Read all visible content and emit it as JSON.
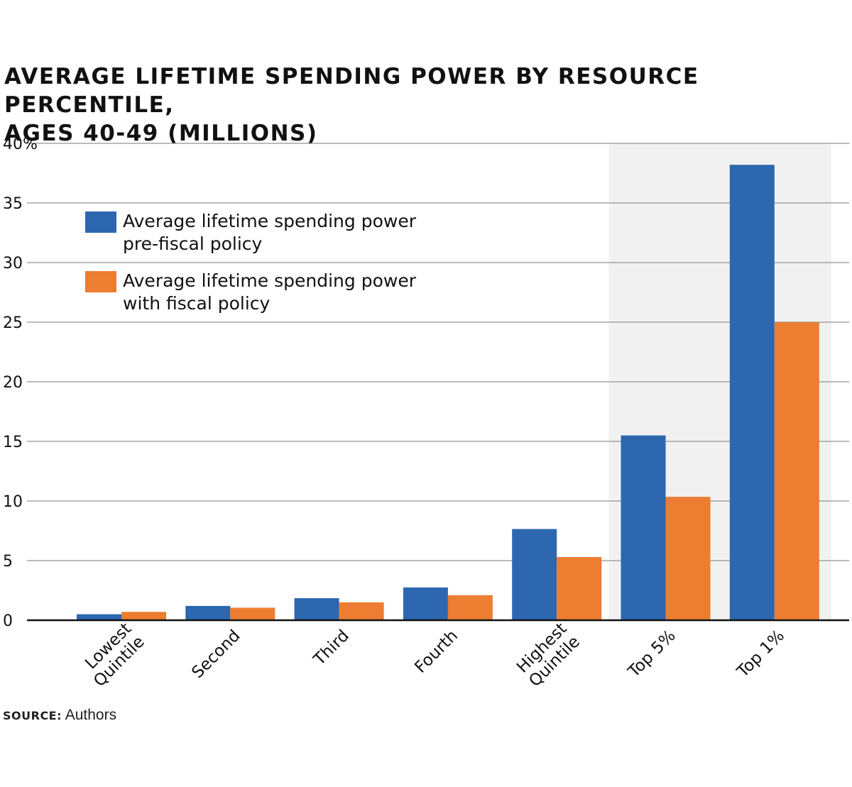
{
  "title_lines": [
    "AVERAGE LIFETIME SPENDING POWER BY RESOURCE PERCENTILE,",
    "AGES 40-49 (MILLIONS)"
  ],
  "source": {
    "label": "SOURCE:",
    "text": "Authors"
  },
  "legend": [
    {
      "series": 0,
      "lines": [
        "Average lifetime spending power",
        "pre-fiscal policy"
      ]
    },
    {
      "series": 1,
      "lines": [
        "Average lifetime spending power",
        "with fiscal policy"
      ]
    }
  ],
  "colors": {
    "series_pre": "#2c67b0",
    "series_with": "#ec7d31",
    "highlight_band": "#f0f1f0",
    "gridline": "#7a7a7a",
    "baseline": "#111111"
  },
  "chart_data": {
    "type": "bar",
    "title": "AVERAGE LIFETIME SPENDING POWER BY RESOURCE PERCENTILE, AGES 40-49 (MILLIONS)",
    "categories": [
      [
        "Lowest",
        "Quintile"
      ],
      [
        "Second"
      ],
      [
        "Third"
      ],
      [
        "Fourth"
      ],
      [
        "Highest",
        "Quintile"
      ],
      [
        "Top 5%"
      ],
      [
        "Top 1%"
      ]
    ],
    "series": [
      {
        "name": "Average lifetime spending power pre-fiscal policy",
        "values": [
          0.5,
          1.2,
          1.85,
          2.75,
          7.65,
          15.5,
          38.2
        ]
      },
      {
        "name": "Average lifetime spending power with fiscal policy",
        "values": [
          0.7,
          1.05,
          1.5,
          2.1,
          5.3,
          10.35,
          25.0
        ]
      }
    ],
    "ylim": [
      0,
      40
    ],
    "yticks": [
      "0",
      "5",
      "10",
      "15",
      "20",
      "25",
      "30",
      "35",
      "40%"
    ],
    "xlabel": "",
    "ylabel": "",
    "grid": true,
    "legend_position": "top-left",
    "highlighted_categories": [
      "Top 5%",
      "Top 1%"
    ]
  }
}
